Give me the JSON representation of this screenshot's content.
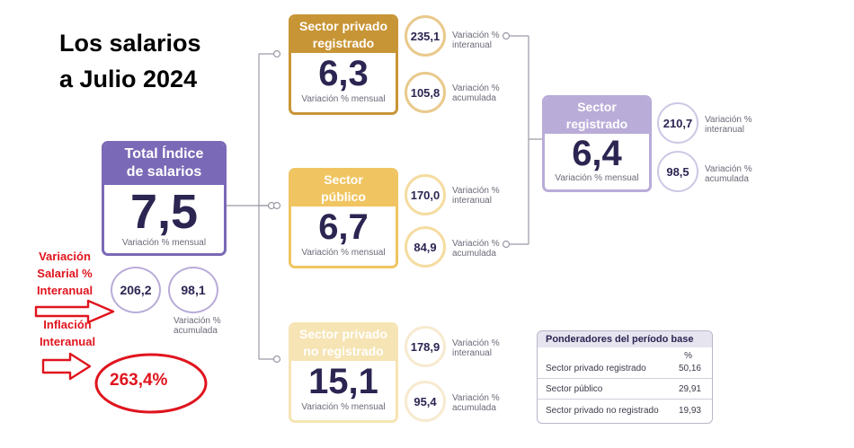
{
  "title": {
    "line1": "Los salarios",
    "line2": "a Julio 2024"
  },
  "total": {
    "header": [
      "Total Índice",
      "de salarios"
    ],
    "value": "7,5",
    "sub": "Variación % mensual",
    "interanual": "206,2",
    "acumulada": "98,1",
    "acumulada_label": [
      "Variación %",
      "acumulada"
    ]
  },
  "annotations": {
    "salarial": [
      "Variación",
      "Salarial %",
      "Interanual"
    ],
    "inflacion": [
      "Inflación",
      "Interanual"
    ],
    "inflacion_value": "263,4%"
  },
  "sectors": {
    "privado": {
      "header": [
        "Sector privado",
        "registrado"
      ],
      "value": "6,3",
      "sub": "Variación % mensual",
      "interanual": "235,1",
      "acumulada": "105,8"
    },
    "publico": {
      "header": [
        "Sector",
        "público"
      ],
      "value": "6,7",
      "sub": "Variación % mensual",
      "interanual": "170,0",
      "acumulada": "84,9"
    },
    "no_registrado": {
      "header": [
        "Sector privado",
        "no registrado"
      ],
      "value": "15,1",
      "sub": "Variación % mensual",
      "interanual": "178,9",
      "acumulada": "95,4"
    },
    "registrado": {
      "header": [
        "Sector",
        "registrado"
      ],
      "value": "6,4",
      "sub": "Variación % mensual",
      "interanual": "210,7",
      "acumulada": "98,5"
    }
  },
  "labels": {
    "interanual": [
      "Variación %",
      "interanual"
    ],
    "acumulada": [
      "Variación %",
      "acumulada"
    ]
  },
  "ponderadores": {
    "title": "Ponderadores del período base",
    "unit": "%",
    "rows": [
      {
        "label": "Sector privado registrado",
        "value": "50,16"
      },
      {
        "label": "Sector público",
        "value": "29,91"
      },
      {
        "label": "Sector privado no registrado",
        "value": "19,93"
      }
    ]
  },
  "colors": {
    "purple": "#7a69b6",
    "purple_light": "#b9acd8",
    "gold": "#c89536",
    "yellow": "#f0c561",
    "cream": "#f6e4b4",
    "red": "#e0141e",
    "navy": "#2b2552"
  }
}
